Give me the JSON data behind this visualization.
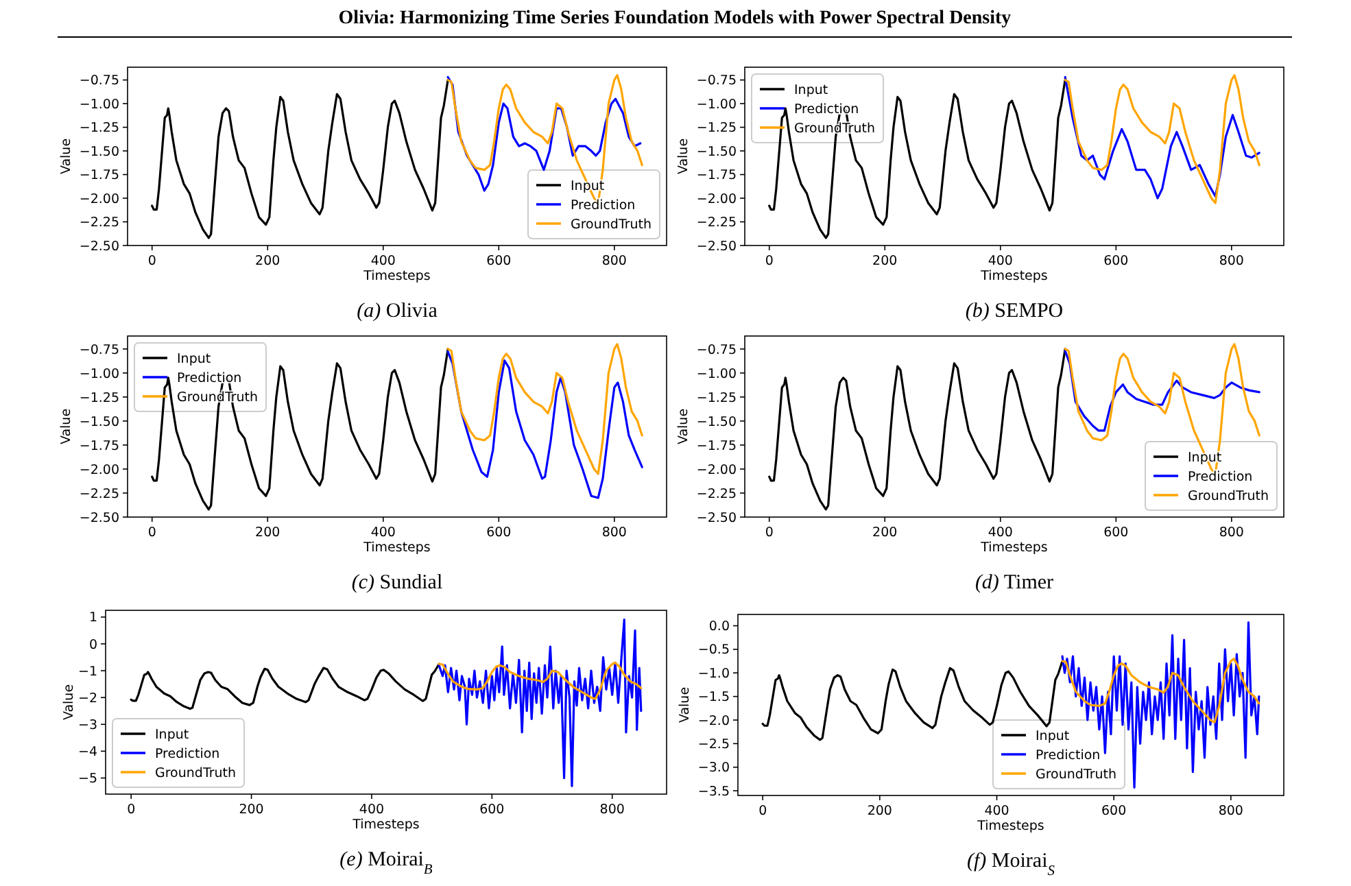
{
  "chart_data": [
    {
      "type": "line",
      "title": "(a) Olivia",
      "xlabel": "Timesteps",
      "ylabel": "Value",
      "annotations": [
        "Olivia: Harmonizing Time Series Foundation Models with Power Spectral Density"
      ],
      "legend": "bottom right",
      "xlim": [
        -42.4,
        890.4
      ],
      "xticks": [
        0,
        200,
        400,
        600,
        800
      ],
      "ylim": [
        -2.5,
        -0.615
      ],
      "yticks": [
        {
          "value": -2.5,
          "label": "−2.50"
        },
        {
          "value": -2.25,
          "label": "−2.25"
        },
        {
          "value": -2,
          "label": "−2.00"
        },
        {
          "value": -1.75,
          "label": "−1.75"
        },
        {
          "value": -1.5,
          "label": "−1.50"
        },
        {
          "value": -1.25,
          "label": "−1.25"
        },
        {
          "value": -1,
          "label": "−1.00"
        },
        {
          "value": -0.75,
          "label": "−0.75"
        }
      ],
      "series": [
        {
          "name": "Input",
          "color": "#000000",
          "x": [
            0,
            3,
            8,
            12,
            18,
            22,
            26,
            28,
            30,
            34,
            42,
            55,
            65,
            75,
            88,
            98,
            102,
            108,
            115,
            122,
            128,
            133,
            140,
            150,
            160,
            172,
            185,
            197,
            203,
            210,
            215,
            222,
            227,
            235,
            245,
            260,
            275,
            290,
            295,
            305,
            312,
            320,
            326,
            335,
            345,
            360,
            375,
            388,
            393,
            400,
            408,
            415,
            420,
            428,
            440,
            455,
            470,
            485,
            490,
            495,
            500,
            505,
            512
          ],
          "values": [
            -2.08,
            -2.12,
            -2.12,
            -1.9,
            -1.45,
            -1.15,
            -1.12,
            -1.05,
            -1.12,
            -1.3,
            -1.6,
            -1.85,
            -1.95,
            -2.15,
            -2.33,
            -2.42,
            -2.38,
            -1.9,
            -1.35,
            -1.1,
            -1.05,
            -1.08,
            -1.35,
            -1.6,
            -1.68,
            -1.95,
            -2.2,
            -2.28,
            -2.2,
            -1.6,
            -1.25,
            -0.93,
            -0.97,
            -1.3,
            -1.6,
            -1.85,
            -2.05,
            -2.17,
            -2.1,
            -1.5,
            -1.2,
            -0.9,
            -0.95,
            -1.3,
            -1.6,
            -1.8,
            -1.95,
            -2.1,
            -2.05,
            -1.7,
            -1.25,
            -1.0,
            -0.97,
            -1.1,
            -1.4,
            -1.7,
            -1.9,
            -2.13,
            -2.05,
            -1.6,
            -1.15,
            -1.02,
            -0.75
          ]
        },
        {
          "name": "Prediction",
          "color": "#0000ff",
          "x": [
            512,
            520,
            530,
            545,
            555,
            565,
            575,
            582,
            590,
            600,
            608,
            615,
            625,
            635,
            645,
            655,
            665,
            678,
            688,
            700,
            708,
            718,
            728,
            738,
            750,
            760,
            768,
            775,
            785,
            795,
            802,
            815,
            825,
            835,
            845
          ],
          "values": [
            -0.72,
            -0.8,
            -1.3,
            -1.55,
            -1.65,
            -1.75,
            -1.92,
            -1.85,
            -1.65,
            -1.2,
            -1.0,
            -1.05,
            -1.35,
            -1.45,
            -1.42,
            -1.45,
            -1.5,
            -1.7,
            -1.5,
            -1.05,
            -1.05,
            -1.25,
            -1.55,
            -1.45,
            -1.45,
            -1.5,
            -1.55,
            -1.5,
            -1.2,
            -1.0,
            -0.95,
            -1.1,
            -1.35,
            -1.45,
            -1.42
          ]
        },
        {
          "name": "GroundTruth",
          "color": "#ffa500",
          "x": [
            512,
            518,
            525,
            535,
            550,
            560,
            575,
            585,
            592,
            600,
            607,
            613,
            620,
            630,
            645,
            660,
            675,
            685,
            692,
            700,
            710,
            720,
            735,
            750,
            765,
            772,
            780,
            790,
            800,
            805,
            812,
            820,
            830,
            840,
            848
          ],
          "values": [
            -0.75,
            -0.77,
            -1.05,
            -1.4,
            -1.6,
            -1.68,
            -1.7,
            -1.65,
            -1.4,
            -1.05,
            -0.85,
            -0.8,
            -0.85,
            -1.05,
            -1.2,
            -1.3,
            -1.35,
            -1.42,
            -1.3,
            -1.0,
            -1.05,
            -1.3,
            -1.6,
            -1.8,
            -2.0,
            -2.05,
            -1.7,
            -1.0,
            -0.75,
            -0.7,
            -0.85,
            -1.15,
            -1.4,
            -1.5,
            -1.65
          ]
        }
      ]
    },
    {
      "type": "line",
      "title": "(b) SEMPO",
      "xlabel": "Timesteps",
      "ylabel": "Value",
      "legend": "top left",
      "xlim": [
        -42.4,
        890.4
      ],
      "xticks": [
        0,
        200,
        400,
        600,
        800
      ],
      "ylim": [
        -2.5,
        -0.615
      ],
      "yticks": [
        {
          "value": -2.5,
          "label": "−2.50"
        },
        {
          "value": -2.25,
          "label": "−2.25"
        },
        {
          "value": -2,
          "label": "−2.00"
        },
        {
          "value": -1.75,
          "label": "−1.75"
        },
        {
          "value": -1.5,
          "label": "−1.50"
        },
        {
          "value": -1.25,
          "label": "−1.25"
        },
        {
          "value": -1,
          "label": "−1.00"
        },
        {
          "value": -0.75,
          "label": "−0.75"
        }
      ],
      "series": [
        {
          "name": "Input",
          "color": "#000000",
          "x": [
            0,
            3,
            8,
            12,
            18,
            22,
            26,
            28,
            30,
            34,
            42,
            55,
            65,
            75,
            88,
            98,
            102,
            108,
            115,
            122,
            128,
            133,
            140,
            150,
            160,
            172,
            185,
            197,
            203,
            210,
            215,
            222,
            227,
            235,
            245,
            260,
            275,
            290,
            295,
            305,
            312,
            320,
            326,
            335,
            345,
            360,
            375,
            388,
            393,
            400,
            408,
            415,
            420,
            428,
            440,
            455,
            470,
            485,
            490,
            495,
            500,
            505,
            512
          ],
          "values": [
            -2.08,
            -2.12,
            -2.12,
            -1.9,
            -1.45,
            -1.15,
            -1.12,
            -1.05,
            -1.12,
            -1.3,
            -1.6,
            -1.85,
            -1.95,
            -2.15,
            -2.33,
            -2.42,
            -2.38,
            -1.9,
            -1.35,
            -1.1,
            -1.05,
            -1.08,
            -1.35,
            -1.6,
            -1.68,
            -1.95,
            -2.2,
            -2.28,
            -2.2,
            -1.6,
            -1.25,
            -0.93,
            -0.97,
            -1.3,
            -1.6,
            -1.85,
            -2.05,
            -2.17,
            -2.1,
            -1.5,
            -1.2,
            -0.9,
            -0.95,
            -1.3,
            -1.6,
            -1.8,
            -1.95,
            -2.1,
            -2.05,
            -1.7,
            -1.25,
            -1.0,
            -0.97,
            -1.1,
            -1.4,
            -1.7,
            -1.9,
            -2.13,
            -2.05,
            -1.6,
            -1.15,
            -1.02,
            -0.75
          ]
        },
        {
          "name": "Prediction",
          "color": "#0000ff",
          "x": [
            512,
            525,
            540,
            550,
            560,
            572,
            580,
            595,
            610,
            620,
            635,
            650,
            660,
            672,
            680,
            695,
            705,
            715,
            730,
            745,
            760,
            772,
            780,
            790,
            802,
            812,
            825,
            835,
            848
          ],
          "values": [
            -0.72,
            -1.15,
            -1.55,
            -1.6,
            -1.55,
            -1.75,
            -1.8,
            -1.5,
            -1.27,
            -1.4,
            -1.7,
            -1.7,
            -1.8,
            -2.0,
            -1.9,
            -1.45,
            -1.3,
            -1.45,
            -1.7,
            -1.65,
            -1.85,
            -1.98,
            -1.75,
            -1.35,
            -1.12,
            -1.3,
            -1.55,
            -1.57,
            -1.52
          ]
        },
        {
          "name": "GroundTruth",
          "color": "#ffa500",
          "x": [
            512,
            518,
            525,
            535,
            550,
            560,
            575,
            585,
            592,
            600,
            607,
            613,
            620,
            630,
            645,
            660,
            675,
            685,
            692,
            700,
            710,
            720,
            735,
            750,
            765,
            772,
            780,
            790,
            800,
            805,
            812,
            820,
            830,
            840,
            848
          ],
          "values": [
            -0.75,
            -0.77,
            -1.05,
            -1.4,
            -1.6,
            -1.68,
            -1.7,
            -1.65,
            -1.4,
            -1.05,
            -0.85,
            -0.8,
            -0.85,
            -1.05,
            -1.2,
            -1.3,
            -1.35,
            -1.42,
            -1.3,
            -1.0,
            -1.05,
            -1.3,
            -1.6,
            -1.8,
            -2.0,
            -2.05,
            -1.7,
            -1.0,
            -0.75,
            -0.7,
            -0.85,
            -1.15,
            -1.4,
            -1.5,
            -1.65
          ]
        }
      ]
    },
    {
      "type": "line",
      "title": "(c) Sundial",
      "xlabel": "Timesteps",
      "ylabel": "Value",
      "legend": "top left",
      "xlim": [
        -42.4,
        890.4
      ],
      "xticks": [
        0,
        200,
        400,
        600,
        800
      ],
      "ylim": [
        -2.5,
        -0.615
      ],
      "yticks": [
        {
          "value": -2.5,
          "label": "−2.50"
        },
        {
          "value": -2.25,
          "label": "−2.25"
        },
        {
          "value": -2,
          "label": "−2.00"
        },
        {
          "value": -1.75,
          "label": "−1.75"
        },
        {
          "value": -1.5,
          "label": "−1.50"
        },
        {
          "value": -1.25,
          "label": "−1.25"
        },
        {
          "value": -1,
          "label": "−1.00"
        },
        {
          "value": -0.75,
          "label": "−0.75"
        }
      ],
      "series": [
        {
          "name": "Input",
          "color": "#000000",
          "x": [
            0,
            3,
            8,
            12,
            18,
            22,
            26,
            28,
            30,
            34,
            42,
            55,
            65,
            75,
            88,
            98,
            102,
            108,
            115,
            122,
            128,
            133,
            140,
            150,
            160,
            172,
            185,
            197,
            203,
            210,
            215,
            222,
            227,
            235,
            245,
            260,
            275,
            290,
            295,
            305,
            312,
            320,
            326,
            335,
            345,
            360,
            375,
            388,
            393,
            400,
            408,
            415,
            420,
            428,
            440,
            455,
            470,
            485,
            490,
            495,
            500,
            505,
            512
          ],
          "values": [
            -2.08,
            -2.12,
            -2.12,
            -1.9,
            -1.45,
            -1.15,
            -1.12,
            -1.05,
            -1.12,
            -1.3,
            -1.6,
            -1.85,
            -1.95,
            -2.15,
            -2.33,
            -2.42,
            -2.38,
            -1.9,
            -1.35,
            -1.1,
            -1.05,
            -1.08,
            -1.35,
            -1.6,
            -1.68,
            -1.95,
            -2.2,
            -2.28,
            -2.2,
            -1.6,
            -1.25,
            -0.93,
            -0.97,
            -1.3,
            -1.6,
            -1.85,
            -2.05,
            -2.17,
            -2.1,
            -1.5,
            -1.2,
            -0.9,
            -0.95,
            -1.3,
            -1.6,
            -1.8,
            -1.95,
            -2.1,
            -2.05,
            -1.7,
            -1.25,
            -1.0,
            -0.97,
            -1.1,
            -1.4,
            -1.7,
            -1.9,
            -2.13,
            -2.05,
            -1.6,
            -1.15,
            -1.02,
            -0.75
          ]
        },
        {
          "name": "Prediction",
          "color": "#0000ff",
          "x": [
            512,
            520,
            535,
            555,
            570,
            580,
            590,
            600,
            610,
            618,
            630,
            645,
            660,
            675,
            680,
            690,
            700,
            707,
            715,
            730,
            745,
            760,
            772,
            780,
            790,
            800,
            806,
            815,
            825,
            835,
            848
          ],
          "values": [
            -0.78,
            -0.9,
            -1.4,
            -1.8,
            -2.03,
            -2.08,
            -1.8,
            -1.2,
            -0.87,
            -0.95,
            -1.4,
            -1.7,
            -1.85,
            -2.1,
            -2.08,
            -1.7,
            -1.2,
            -1.05,
            -1.2,
            -1.75,
            -2.0,
            -2.28,
            -2.3,
            -2.1,
            -1.6,
            -1.15,
            -1.1,
            -1.3,
            -1.65,
            -1.8,
            -1.98
          ]
        },
        {
          "name": "GroundTruth",
          "color": "#ffa500",
          "x": [
            512,
            518,
            525,
            535,
            550,
            560,
            575,
            585,
            592,
            600,
            607,
            613,
            620,
            630,
            645,
            660,
            675,
            685,
            692,
            700,
            710,
            720,
            735,
            750,
            765,
            772,
            780,
            790,
            800,
            805,
            812,
            820,
            830,
            840,
            848
          ],
          "values": [
            -0.75,
            -0.77,
            -1.05,
            -1.4,
            -1.6,
            -1.68,
            -1.7,
            -1.65,
            -1.4,
            -1.05,
            -0.85,
            -0.8,
            -0.85,
            -1.05,
            -1.2,
            -1.3,
            -1.35,
            -1.42,
            -1.3,
            -1.0,
            -1.05,
            -1.3,
            -1.6,
            -1.8,
            -2.0,
            -2.05,
            -1.7,
            -1.0,
            -0.75,
            -0.7,
            -0.85,
            -1.15,
            -1.4,
            -1.5,
            -1.65
          ]
        }
      ]
    },
    {
      "type": "line",
      "title": "(d) Timer",
      "xlabel": "Timesteps",
      "ylabel": "Value",
      "legend": "bottom right",
      "xlim": [
        -42.4,
        890.4
      ],
      "xticks": [
        0,
        200,
        400,
        600,
        800
      ],
      "ylim": [
        -2.5,
        -0.615
      ],
      "yticks": [
        {
          "value": -2.5,
          "label": "−2.50"
        },
        {
          "value": -2.25,
          "label": "−2.25"
        },
        {
          "value": -2,
          "label": "−2.00"
        },
        {
          "value": -1.75,
          "label": "−1.75"
        },
        {
          "value": -1.5,
          "label": "−1.50"
        },
        {
          "value": -1.25,
          "label": "−1.25"
        },
        {
          "value": -1,
          "label": "−1.00"
        },
        {
          "value": -0.75,
          "label": "−0.75"
        }
      ],
      "series": [
        {
          "name": "Input",
          "color": "#000000",
          "x": [
            0,
            3,
            8,
            12,
            18,
            22,
            26,
            28,
            30,
            34,
            42,
            55,
            65,
            75,
            88,
            98,
            102,
            108,
            115,
            122,
            128,
            133,
            140,
            150,
            160,
            172,
            185,
            197,
            203,
            210,
            215,
            222,
            227,
            235,
            245,
            260,
            275,
            290,
            295,
            305,
            312,
            320,
            326,
            335,
            345,
            360,
            375,
            388,
            393,
            400,
            408,
            415,
            420,
            428,
            440,
            455,
            470,
            485,
            490,
            495,
            500,
            505,
            512
          ],
          "values": [
            -2.08,
            -2.12,
            -2.12,
            -1.9,
            -1.45,
            -1.15,
            -1.12,
            -1.05,
            -1.12,
            -1.3,
            -1.6,
            -1.85,
            -1.95,
            -2.15,
            -2.33,
            -2.42,
            -2.38,
            -1.9,
            -1.35,
            -1.1,
            -1.05,
            -1.08,
            -1.35,
            -1.6,
            -1.68,
            -1.95,
            -2.2,
            -2.28,
            -2.2,
            -1.6,
            -1.25,
            -0.93,
            -0.97,
            -1.3,
            -1.6,
            -1.85,
            -2.05,
            -2.17,
            -2.1,
            -1.5,
            -1.2,
            -0.9,
            -0.95,
            -1.3,
            -1.6,
            -1.8,
            -1.95,
            -2.1,
            -2.05,
            -1.7,
            -1.25,
            -1.0,
            -0.97,
            -1.1,
            -1.4,
            -1.7,
            -1.9,
            -2.13,
            -2.05,
            -1.6,
            -1.15,
            -1.02,
            -0.75
          ]
        },
        {
          "name": "Prediction",
          "color": "#0000ff",
          "x": [
            512,
            520,
            530,
            545,
            560,
            570,
            580,
            590,
            600,
            612,
            620,
            635,
            650,
            665,
            680,
            690,
            705,
            715,
            730,
            750,
            770,
            780,
            790,
            800,
            815,
            830,
            848
          ],
          "values": [
            -0.77,
            -0.9,
            -1.3,
            -1.45,
            -1.55,
            -1.6,
            -1.6,
            -1.35,
            -1.2,
            -1.12,
            -1.2,
            -1.27,
            -1.3,
            -1.33,
            -1.33,
            -1.2,
            -1.08,
            -1.15,
            -1.2,
            -1.23,
            -1.26,
            -1.23,
            -1.15,
            -1.1,
            -1.15,
            -1.18,
            -1.2
          ]
        },
        {
          "name": "GroundTruth",
          "color": "#ffa500",
          "x": [
            512,
            518,
            525,
            535,
            550,
            560,
            575,
            585,
            592,
            600,
            607,
            613,
            620,
            630,
            645,
            660,
            675,
            685,
            692,
            700,
            710,
            720,
            735,
            750,
            765,
            772,
            780,
            790,
            800,
            805,
            812,
            820,
            830,
            840,
            848
          ],
          "values": [
            -0.75,
            -0.77,
            -1.05,
            -1.4,
            -1.6,
            -1.68,
            -1.7,
            -1.65,
            -1.4,
            -1.05,
            -0.85,
            -0.8,
            -0.85,
            -1.05,
            -1.2,
            -1.3,
            -1.35,
            -1.42,
            -1.3,
            -1.0,
            -1.05,
            -1.3,
            -1.6,
            -1.8,
            -2.0,
            -2.05,
            -1.7,
            -1.0,
            -0.75,
            -0.7,
            -0.85,
            -1.15,
            -1.4,
            -1.5,
            -1.65
          ]
        }
      ]
    },
    {
      "type": "line",
      "title": "(e) Moirai$_{B}$",
      "xlabel": "Timesteps",
      "ylabel": "Value",
      "legend": "bottom left",
      "xlim": [
        -42.4,
        890.4
      ],
      "xticks": [
        0,
        200,
        400,
        600,
        800
      ],
      "ylim": [
        -5.6,
        1.25
      ],
      "yticks": [
        {
          "value": -5,
          "label": "−5"
        },
        {
          "value": -4,
          "label": "−4"
        },
        {
          "value": -3,
          "label": "−3"
        },
        {
          "value": -2,
          "label": "−2"
        },
        {
          "value": -1,
          "label": "−1"
        },
        0,
        1
      ],
      "series": [
        {
          "name": "Input",
          "color": "#000000",
          "x": [
            0,
            3,
            8,
            12,
            18,
            22,
            26,
            28,
            30,
            34,
            42,
            55,
            65,
            75,
            88,
            98,
            102,
            108,
            115,
            122,
            128,
            133,
            140,
            150,
            160,
            172,
            185,
            197,
            203,
            210,
            215,
            222,
            227,
            235,
            245,
            260,
            275,
            290,
            295,
            305,
            312,
            320,
            326,
            335,
            345,
            360,
            375,
            388,
            393,
            400,
            408,
            415,
            420,
            428,
            440,
            455,
            470,
            485,
            490,
            495,
            500,
            505,
            512
          ],
          "values": [
            -2.08,
            -2.12,
            -2.12,
            -1.9,
            -1.45,
            -1.15,
            -1.12,
            -1.05,
            -1.12,
            -1.3,
            -1.6,
            -1.85,
            -1.95,
            -2.15,
            -2.33,
            -2.42,
            -2.38,
            -1.9,
            -1.35,
            -1.1,
            -1.05,
            -1.08,
            -1.35,
            -1.6,
            -1.68,
            -1.95,
            -2.2,
            -2.28,
            -2.2,
            -1.6,
            -1.25,
            -0.93,
            -0.97,
            -1.3,
            -1.6,
            -1.85,
            -2.05,
            -2.17,
            -2.1,
            -1.5,
            -1.2,
            -0.9,
            -0.95,
            -1.3,
            -1.6,
            -1.8,
            -1.95,
            -2.1,
            -2.05,
            -1.7,
            -1.25,
            -1.0,
            -0.97,
            -1.1,
            -1.4,
            -1.7,
            -1.9,
            -2.13,
            -2.05,
            -1.6,
            -1.15,
            -1.02,
            -0.75
          ]
        },
        {
          "name": "Prediction",
          "color": "#0000ff",
          "x": [
            512,
            518,
            522,
            527,
            532,
            537,
            541,
            546,
            550,
            555,
            558,
            562,
            567,
            571,
            575,
            580,
            585,
            590,
            595,
            600,
            604,
            608,
            612,
            617,
            620,
            625,
            630,
            635,
            640,
            645,
            650,
            654,
            658,
            662,
            666,
            670,
            674,
            678,
            683,
            688,
            692,
            697,
            702,
            706,
            711,
            715,
            720,
            724,
            729,
            733,
            737,
            741,
            745,
            750,
            755,
            760,
            765,
            770,
            775,
            780,
            785,
            790,
            795,
            800,
            805,
            810,
            815,
            820,
            823,
            828,
            833,
            838,
            841,
            845,
            848
          ],
          "values": [
            -0.8,
            -1.2,
            -0.8,
            -1.8,
            -0.9,
            -1.7,
            -1.0,
            -2.1,
            -1.2,
            -1.6,
            -3.0,
            -1.3,
            -1.9,
            -1.0,
            -2.0,
            -1.4,
            -2.2,
            -1.0,
            -2.4,
            -1.2,
            -2.1,
            -0.9,
            -1.8,
            -0.1,
            -1.9,
            -0.8,
            -2.4,
            -1.1,
            -2.2,
            -0.6,
            -3.3,
            -1.0,
            -2.5,
            -0.7,
            -2.8,
            -1.1,
            -2.2,
            -0.9,
            -2.6,
            -0.8,
            -2.0,
            -0.1,
            -2.4,
            -1.0,
            -2.2,
            -1.2,
            -5.0,
            -1.0,
            -2.0,
            -5.3,
            -1.4,
            -2.3,
            -0.9,
            -2.1,
            -1.3,
            -2.4,
            -1.0,
            -2.2,
            -1.6,
            -2.5,
            -0.5,
            -1.7,
            -0.9,
            -1.9,
            -0.7,
            -2.2,
            -0.6,
            0.9,
            -3.3,
            -1.2,
            -2.0,
            0.5,
            -3.2,
            -0.9,
            -2.5
          ]
        },
        {
          "name": "GroundTruth",
          "color": "#ffa500",
          "x": [
            512,
            518,
            525,
            535,
            550,
            560,
            575,
            585,
            592,
            600,
            607,
            613,
            620,
            630,
            645,
            660,
            675,
            685,
            692,
            700,
            710,
            720,
            735,
            750,
            765,
            772,
            780,
            790,
            800,
            805,
            812,
            820,
            830,
            840,
            848
          ],
          "values": [
            -0.75,
            -0.77,
            -1.05,
            -1.4,
            -1.6,
            -1.68,
            -1.7,
            -1.65,
            -1.4,
            -1.05,
            -0.85,
            -0.8,
            -0.85,
            -1.05,
            -1.2,
            -1.3,
            -1.35,
            -1.42,
            -1.3,
            -1.0,
            -1.05,
            -1.3,
            -1.6,
            -1.8,
            -2.0,
            -2.05,
            -1.7,
            -1.0,
            -0.75,
            -0.7,
            -0.85,
            -1.15,
            -1.4,
            -1.5,
            -1.65
          ]
        }
      ]
    },
    {
      "type": "line",
      "title": "(f) Moirai$_{S}$",
      "xlabel": "Timesteps",
      "ylabel": "Value",
      "legend": "bottom",
      "xlim": [
        -42.4,
        890.4
      ],
      "xticks": [
        0,
        200,
        400,
        600,
        800
      ],
      "ylim": [
        -3.6,
        0.24
      ],
      "yticks": [
        {
          "value": -3.5,
          "label": "−3.5"
        },
        {
          "value": -3,
          "label": "−3.0"
        },
        {
          "value": -2.5,
          "label": "−2.5"
        },
        {
          "value": -2,
          "label": "−2.0"
        },
        {
          "value": -1.5,
          "label": "−1.5"
        },
        {
          "value": -1,
          "label": "−1.0"
        },
        {
          "value": -0.5,
          "label": "−0.5"
        },
        {
          "value": 0,
          "label": "0.0"
        }
      ],
      "series": [
        {
          "name": "Input",
          "color": "#000000",
          "x": [
            0,
            3,
            8,
            12,
            18,
            22,
            26,
            28,
            30,
            34,
            42,
            55,
            65,
            75,
            88,
            98,
            102,
            108,
            115,
            122,
            128,
            133,
            140,
            150,
            160,
            172,
            185,
            197,
            203,
            210,
            215,
            222,
            227,
            235,
            245,
            260,
            275,
            290,
            295,
            305,
            312,
            320,
            326,
            335,
            345,
            360,
            375,
            388,
            393,
            400,
            408,
            415,
            420,
            428,
            440,
            455,
            470,
            485,
            490,
            495,
            500,
            505,
            512
          ],
          "values": [
            -2.08,
            -2.12,
            -2.12,
            -1.9,
            -1.45,
            -1.15,
            -1.12,
            -1.05,
            -1.12,
            -1.3,
            -1.6,
            -1.85,
            -1.95,
            -2.15,
            -2.33,
            -2.42,
            -2.38,
            -1.9,
            -1.35,
            -1.1,
            -1.05,
            -1.08,
            -1.35,
            -1.6,
            -1.68,
            -1.95,
            -2.2,
            -2.28,
            -2.2,
            -1.6,
            -1.25,
            -0.93,
            -0.97,
            -1.3,
            -1.6,
            -1.85,
            -2.05,
            -2.17,
            -2.1,
            -1.5,
            -1.2,
            -0.9,
            -0.95,
            -1.3,
            -1.6,
            -1.8,
            -1.95,
            -2.1,
            -2.05,
            -1.7,
            -1.25,
            -1.0,
            -0.97,
            -1.1,
            -1.4,
            -1.7,
            -1.9,
            -2.13,
            -2.05,
            -1.6,
            -1.15,
            -1.02,
            -0.75
          ]
        },
        {
          "name": "Prediction",
          "color": "#0000ff",
          "x": [
            512,
            516,
            520,
            525,
            530,
            535,
            540,
            545,
            550,
            555,
            560,
            565,
            570,
            575,
            580,
            585,
            590,
            595,
            600,
            605,
            610,
            615,
            620,
            625,
            630,
            635,
            640,
            645,
            650,
            655,
            660,
            665,
            670,
            675,
            680,
            685,
            690,
            695,
            700,
            705,
            710,
            715,
            720,
            725,
            730,
            735,
            740,
            745,
            750,
            755,
            760,
            765,
            770,
            775,
            780,
            785,
            790,
            795,
            800,
            805,
            810,
            815,
            820,
            825,
            830,
            835,
            840,
            845,
            848
          ],
          "values": [
            -0.65,
            -1.0,
            -0.7,
            -1.2,
            -0.65,
            -1.5,
            -0.9,
            -1.7,
            -1.1,
            -2.0,
            -1.2,
            -1.8,
            -1.3,
            -2.2,
            -1.5,
            -2.7,
            -1.4,
            -2.3,
            -0.65,
            -1.8,
            -0.65,
            -2.1,
            -0.8,
            -2.2,
            -1.2,
            -3.43,
            -1.3,
            -2.5,
            -1.4,
            -2.0,
            -1.2,
            -2.3,
            -1.5,
            -2.0,
            -1.2,
            -2.4,
            -0.8,
            -1.9,
            -0.2,
            -2.4,
            -0.7,
            -2.0,
            -0.3,
            -2.6,
            -0.9,
            -3.1,
            -1.4,
            -2.2,
            -1.6,
            -2.8,
            -1.3,
            -2.1,
            -1.5,
            -2.4,
            -0.8,
            -2.0,
            -0.5,
            -1.6,
            -0.8,
            -1.9,
            -0.6,
            -1.5,
            -1.0,
            -2.8,
            0.07,
            -1.9,
            -1.5,
            -2.3,
            -1.5
          ]
        },
        {
          "name": "GroundTruth",
          "color": "#ffa500",
          "x": [
            512,
            518,
            525,
            535,
            550,
            560,
            575,
            585,
            592,
            600,
            607,
            613,
            620,
            630,
            645,
            660,
            675,
            685,
            692,
            700,
            710,
            720,
            735,
            750,
            765,
            772,
            780,
            790,
            800,
            805,
            812,
            820,
            830,
            840,
            848
          ],
          "values": [
            -0.75,
            -0.77,
            -1.05,
            -1.4,
            -1.6,
            -1.68,
            -1.7,
            -1.65,
            -1.4,
            -1.05,
            -0.85,
            -0.8,
            -0.85,
            -1.05,
            -1.2,
            -1.3,
            -1.35,
            -1.42,
            -1.3,
            -1.0,
            -1.05,
            -1.3,
            -1.6,
            -1.8,
            -2.0,
            -2.05,
            -1.7,
            -1.0,
            -0.75,
            -0.7,
            -0.85,
            -1.15,
            -1.4,
            -1.5,
            -1.65
          ]
        }
      ]
    }
  ]
}
